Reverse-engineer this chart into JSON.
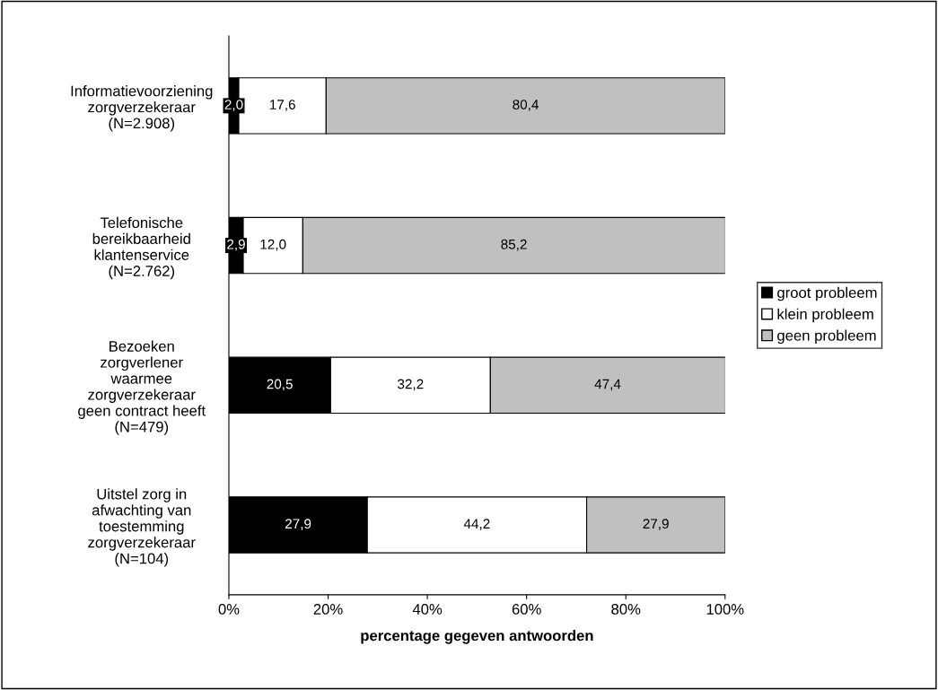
{
  "chart_data": {
    "type": "bar",
    "orientation": "horizontal",
    "stacked": true,
    "categories": [
      "Informatievoorziening\nzorgverzekeraar\n(N=2.908)",
      "Telefonische\nbereikbaarheid\nklantenservice\n(N=2.762)",
      "Bezoeken\nzorgverlener\nwaarmee\nzorgverzekeraar\ngeen contract heeft\n(N=479)",
      "Uitstel zorg in\nafwachting van\ntoestemming\nzorgverzekeraar\n(N=104)"
    ],
    "series": [
      {
        "name": "groot probleem",
        "color": "#000000",
        "values": [
          2.0,
          2.9,
          20.5,
          27.9
        ],
        "value_labels": [
          "2,0",
          "2,9",
          "20,5",
          "27,9"
        ]
      },
      {
        "name": "klein probleem",
        "color": "#ffffff",
        "values": [
          17.6,
          12.0,
          32.2,
          44.2
        ],
        "value_labels": [
          "17,6",
          "12,0",
          "32,2",
          "44,2"
        ]
      },
      {
        "name": "geen probleem",
        "color": "#c0c0c0",
        "values": [
          80.4,
          85.2,
          47.4,
          27.9
        ],
        "value_labels": [
          "80,4",
          "85,2",
          "47,4",
          "27,9"
        ]
      }
    ],
    "xlim": [
      0,
      100
    ],
    "xticks": [
      {
        "value": 0,
        "label": "0%"
      },
      {
        "value": 20,
        "label": "20%"
      },
      {
        "value": 40,
        "label": "40%"
      },
      {
        "value": 60,
        "label": "60%"
      },
      {
        "value": 80,
        "label": "80%"
      },
      {
        "value": 100,
        "label": "100%"
      }
    ],
    "xlabel": "percentage gegeven antwoorden",
    "legend": "right",
    "grid": false
  }
}
